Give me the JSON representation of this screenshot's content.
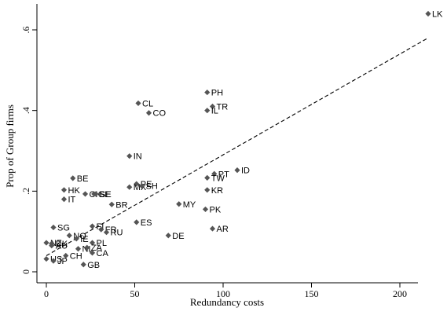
{
  "chart_data": {
    "type": "scatter",
    "xlabel": "Redundancy costs",
    "ylabel": "Prop of Group firms",
    "xlim": [
      -2,
      222
    ],
    "ylim": [
      -0.01,
      0.66
    ],
    "x_ticks": [
      {
        "value": 0,
        "label": "0"
      },
      {
        "value": 50,
        "label": "50"
      },
      {
        "value": 100,
        "label": "100"
      },
      {
        "value": 150,
        "label": "150"
      },
      {
        "value": 200,
        "label": "200"
      }
    ],
    "y_ticks": [
      {
        "value": 0,
        "label": "0"
      },
      {
        "value": 0.2,
        "label": ".2"
      },
      {
        "value": 0.4,
        "label": ".4"
      },
      {
        "value": 0.6,
        "label": ".6"
      }
    ],
    "fit_line": {
      "x": [
        0,
        216
      ],
      "y": [
        0.04,
        0.58
      ]
    },
    "points": [
      {
        "label": "LK",
        "x": 216,
        "y": 0.64
      },
      {
        "label": "PH",
        "x": 91,
        "y": 0.445
      },
      {
        "label": "TR",
        "x": 94,
        "y": 0.41
      },
      {
        "label": "IL",
        "x": 91,
        "y": 0.4
      },
      {
        "label": "CL",
        "x": 52,
        "y": 0.418
      },
      {
        "label": "CO",
        "x": 58,
        "y": 0.394
      },
      {
        "label": "IN",
        "x": 47,
        "y": 0.287
      },
      {
        "label": "ID",
        "x": 108,
        "y": 0.252
      },
      {
        "label": "PT",
        "x": 95,
        "y": 0.243
      },
      {
        "label": "TW",
        "x": 91,
        "y": 0.233
      },
      {
        "label": "KR",
        "x": 91,
        "y": 0.203
      },
      {
        "label": "BE",
        "x": 15,
        "y": 0.232
      },
      {
        "label": "HK",
        "x": 10,
        "y": 0.203
      },
      {
        "label": "IT",
        "x": 10,
        "y": 0.18
      },
      {
        "label": "CH",
        "x": 22,
        "y": 0.193
      },
      {
        "label": "GE",
        "x": 27,
        "y": 0.193
      },
      {
        "label": "SE",
        "x": 28,
        "y": 0.193
      },
      {
        "label": "PE",
        "x": 51,
        "y": 0.218
      },
      {
        "label": "MX",
        "x": 47,
        "y": 0.21
      },
      {
        "label": "SH",
        "x": 54,
        "y": 0.213
      },
      {
        "label": "BR",
        "x": 37,
        "y": 0.167
      },
      {
        "label": "MY",
        "x": 75,
        "y": 0.168
      },
      {
        "label": "PK",
        "x": 90,
        "y": 0.155
      },
      {
        "label": "ES",
        "x": 51,
        "y": 0.123
      },
      {
        "label": "AR",
        "x": 94,
        "y": 0.107
      },
      {
        "label": "DE",
        "x": 69,
        "y": 0.09
      },
      {
        "label": "FI",
        "x": 26,
        "y": 0.113
      },
      {
        "label": "FR",
        "x": 31,
        "y": 0.105
      },
      {
        "label": "RU",
        "x": 34,
        "y": 0.098
      },
      {
        "label": "SG",
        "x": 4,
        "y": 0.11
      },
      {
        "label": "NO",
        "x": 13,
        "y": 0.09
      },
      {
        "label": "IE",
        "x": 17,
        "y": 0.082
      },
      {
        "label": "PL",
        "x": 26,
        "y": 0.072
      },
      {
        "label": "NZ",
        "x": 0,
        "y": 0.072
      },
      {
        "label": "DK",
        "x": 3,
        "y": 0.07
      },
      {
        "label": "AU",
        "x": 3,
        "y": 0.065
      },
      {
        "label": "NL",
        "x": 18,
        "y": 0.057
      },
      {
        "label": "ZA",
        "x": 23,
        "y": 0.06
      },
      {
        "label": "CA",
        "x": 26,
        "y": 0.047
      },
      {
        "label": "CH",
        "x": 11,
        "y": 0.04
      },
      {
        "label": "US",
        "x": 0,
        "y": 0.032
      },
      {
        "label": "JP",
        "x": 4,
        "y": 0.027
      },
      {
        "label": "GB",
        "x": 21,
        "y": 0.018
      }
    ]
  }
}
